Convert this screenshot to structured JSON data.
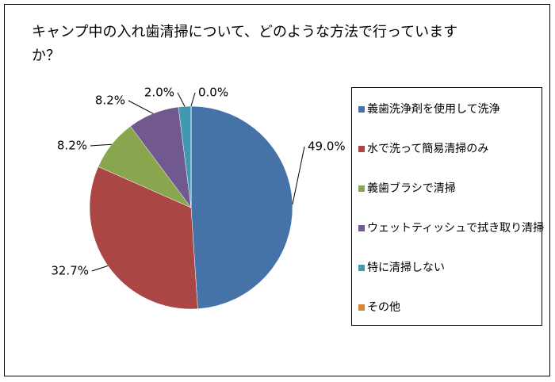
{
  "chart_data": {
    "type": "pie",
    "title": "キャンプ中の入れ歯清掃について、どのような方法で行っていますか？",
    "categories": [
      "義歯洗浄剤を使用して洗浄",
      "水で洗って簡易清掃のみ",
      "義歯ブラシで清掃",
      "ウェットティッシュで拭き取り清掃",
      "特に清掃しない",
      "その他"
    ],
    "values": [
      49.0,
      32.7,
      8.2,
      8.2,
      2.0,
      0.0
    ],
    "value_labels": [
      "49.0%",
      "32.7%",
      "8.2%",
      "8.2%",
      "2.0%",
      "0.0%"
    ],
    "colors": [
      "#4572a7",
      "#aa4643",
      "#89a54e",
      "#71588f",
      "#4198af",
      "#db843d"
    ],
    "legend": "right"
  }
}
